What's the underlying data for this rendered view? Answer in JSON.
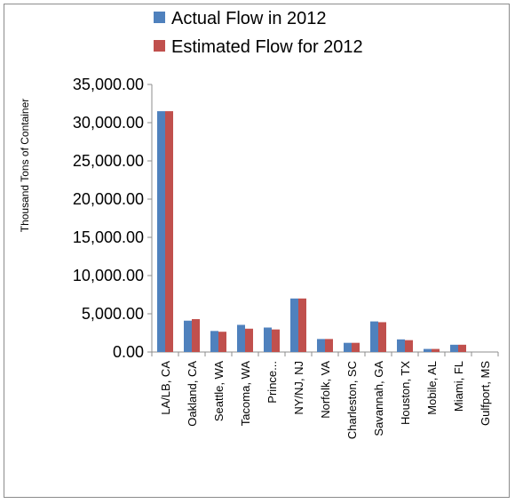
{
  "chart_data": {
    "type": "bar",
    "title": "",
    "xlabel": "",
    "ylabel": "Thousand Tons of Container",
    "ylim": [
      0,
      35000
    ],
    "yticks": [
      "0.00",
      "5,000.00",
      "10,000.00",
      "15,000.00",
      "20,000.00",
      "25,000.00",
      "30,000.00",
      "35,000.00"
    ],
    "grid": false,
    "legend_position": "top",
    "categories": [
      "LA/LB, CA",
      "Oakland, CA",
      "Seattle, WA",
      "Tacoma, WA",
      "Prince...",
      "NY/NJ, NJ",
      "Norfolk, VA",
      "Charleston, SC",
      "Savannah, GA",
      "Houston, TX",
      "Mobile, AL",
      "Miami, FL",
      "Gulfport, MS"
    ],
    "series": [
      {
        "name": "Actual Flow in 2012",
        "color": "#4f81bd",
        "values": [
          31500,
          4100,
          2750,
          3550,
          3200,
          7000,
          1700,
          1200,
          4000,
          1650,
          400,
          950,
          0
        ]
      },
      {
        "name": "Estimated Flow for 2012",
        "color": "#c0504d",
        "values": [
          31500,
          4300,
          2650,
          3050,
          2950,
          7000,
          1700,
          1200,
          3900,
          1550,
          400,
          950,
          0
        ]
      }
    ]
  }
}
